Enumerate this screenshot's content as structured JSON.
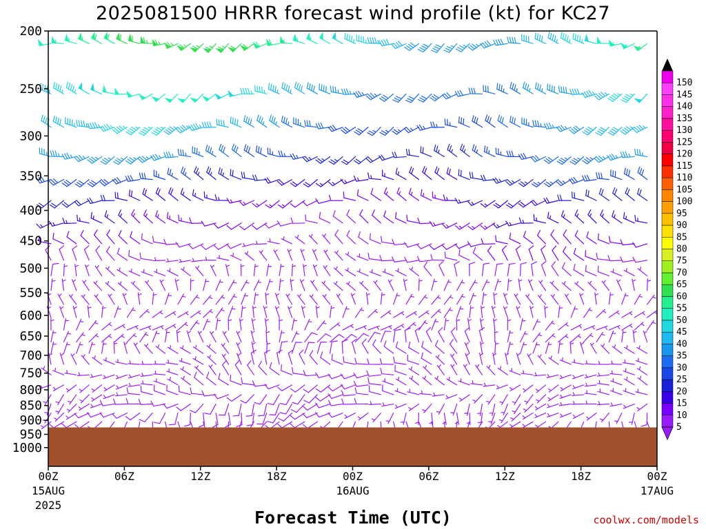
{
  "chart_data": {
    "type": "wind-barb time-height cross section",
    "title": "2025081500 HRRR forecast wind profile (kt) for KC27",
    "xlabel": "Forecast Time (UTC)",
    "ylabel": "",
    "credit": "coolwx.com/models",
    "y_axis": {
      "scale": "pressure (reversed)",
      "ylim": [
        1075,
        200
      ],
      "ticks": [
        200,
        250,
        300,
        350,
        400,
        450,
        500,
        550,
        600,
        650,
        700,
        750,
        800,
        850,
        900,
        950,
        1000
      ]
    },
    "x_axis": {
      "range_hours": [
        0,
        48
      ],
      "ticks": [
        {
          "hour": 0,
          "label": "00Z",
          "sub1": "15AUG",
          "sub2": "2025"
        },
        {
          "hour": 6,
          "label": "06Z",
          "sub1": "",
          "sub2": ""
        },
        {
          "hour": 12,
          "label": "12Z",
          "sub1": "",
          "sub2": ""
        },
        {
          "hour": 18,
          "label": "18Z",
          "sub1": "",
          "sub2": ""
        },
        {
          "hour": 24,
          "label": "00Z",
          "sub1": "16AUG",
          "sub2": ""
        },
        {
          "hour": 30,
          "label": "06Z",
          "sub1": "",
          "sub2": ""
        },
        {
          "hour": 36,
          "label": "12Z",
          "sub1": "",
          "sub2": ""
        },
        {
          "hour": 42,
          "label": "18Z",
          "sub1": "",
          "sub2": ""
        },
        {
          "hour": 48,
          "label": "00Z",
          "sub1": "17AUG",
          "sub2": ""
        }
      ]
    },
    "surface_pressure_hpa": 925,
    "colorbar": {
      "units": "kt",
      "levels": [
        5,
        10,
        15,
        20,
        25,
        30,
        35,
        40,
        45,
        50,
        55,
        60,
        65,
        70,
        75,
        80,
        85,
        90,
        95,
        100,
        105,
        110,
        115,
        120,
        125,
        130,
        135,
        140,
        145,
        150
      ],
      "colors": [
        "#9b1bff",
        "#7a00ff",
        "#3a00e8",
        "#1a20d8",
        "#1a48e8",
        "#1a6cf0",
        "#1a98f0",
        "#20b8f0",
        "#20d8e0",
        "#20f0c0",
        "#20f090",
        "#30e050",
        "#60f030",
        "#a0f020",
        "#d8f020",
        "#ffff00",
        "#ffe000",
        "#ffc000",
        "#ffa000",
        "#ff8800",
        "#ff6000",
        "#ff3000",
        "#ff0000",
        "#f00040",
        "#ff0070",
        "#ff10a0",
        "#ff20c8",
        "#ff30e8",
        "#ff40ff",
        "#ee00ee"
      ]
    },
    "profile": {
      "levels_hpa": [
        210,
        255,
        290,
        325,
        355,
        385,
        420,
        455,
        485,
        515,
        545,
        575,
        605,
        635,
        665,
        695,
        725,
        755,
        785,
        815,
        845,
        875,
        905
      ],
      "speed_kt": [
        62,
        50,
        44,
        36,
        28,
        20,
        16,
        12,
        10,
        8,
        7,
        7,
        7,
        7,
        8,
        8,
        8,
        8,
        8,
        9,
        9,
        9,
        9
      ],
      "dir_deg": [
        260,
        262,
        265,
        268,
        270,
        270,
        275,
        280,
        300,
        330,
        350,
        0,
        20,
        30,
        10,
        340,
        310,
        290,
        270,
        250,
        230,
        210,
        200
      ],
      "hour_step": 1
    },
    "colors": {
      "terrain": "#a0522d",
      "axis": "#000000"
    }
  }
}
